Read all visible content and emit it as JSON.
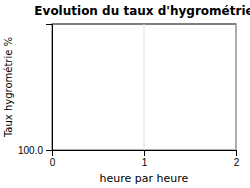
{
  "chart_data": {
    "type": "line",
    "title": "Evolution du taux d'hygrométrie",
    "x_label": "heure par heure",
    "y_label": "Taux hygrométrie %",
    "xlim": [
      0,
      2
    ],
    "xticks": [
      0,
      1,
      2
    ],
    "ylim": [
      100,
      160
    ],
    "yticks": [
      {
        "value": 100.0,
        "label": "100.0"
      }
    ],
    "grid": true
  }
}
